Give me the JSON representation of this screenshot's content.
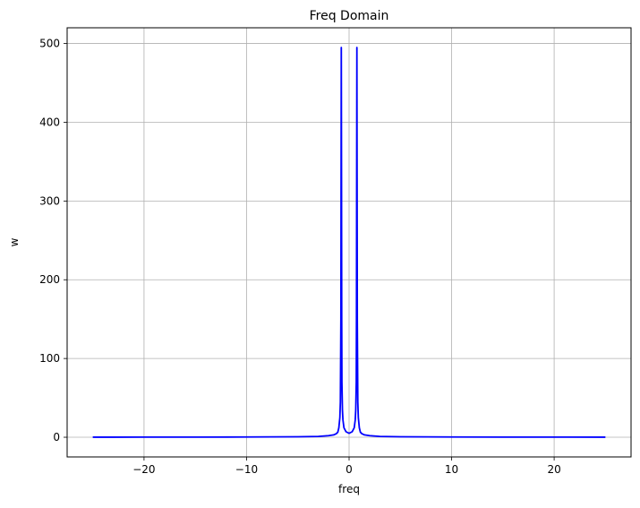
{
  "chart_data": {
    "type": "line",
    "title": "Freq Domain",
    "xlabel": "freq",
    "ylabel": "w",
    "xlim": [
      -27.5,
      27.5
    ],
    "ylim": [
      -25,
      520
    ],
    "xticks": [
      -20,
      -10,
      0,
      10,
      20
    ],
    "yticks": [
      0,
      100,
      200,
      300,
      400,
      500
    ],
    "xtick_labels": [
      "−20",
      "−10",
      "0",
      "10",
      "20"
    ],
    "ytick_labels": [
      "0",
      "100",
      "200",
      "300",
      "400",
      "500"
    ],
    "grid": true,
    "legend": "none",
    "series": [
      {
        "color": "#0000ff",
        "x": [
          -25,
          -20,
          -15,
          -10,
          -5,
          -3,
          -2,
          -1.5,
          -1.25,
          -1.1,
          -1.0,
          -0.9,
          -0.85,
          -0.8,
          -0.78,
          -0.76,
          -0.74,
          -0.72,
          -0.7,
          -0.65,
          -0.6,
          -0.5,
          -0.3,
          0,
          0.3,
          0.5,
          0.6,
          0.65,
          0.7,
          0.72,
          0.74,
          0.76,
          0.78,
          0.8,
          0.85,
          0.9,
          1.0,
          1.1,
          1.25,
          1.5,
          2,
          3,
          5,
          10,
          15,
          20,
          25
        ],
        "y": [
          0.1,
          0.15,
          0.2,
          0.3,
          0.6,
          1.0,
          2.0,
          3.0,
          4.5,
          6.5,
          12,
          25,
          45,
          150,
          330,
          495,
          330,
          150,
          70,
          35,
          22,
          12,
          7,
          5,
          7,
          12,
          22,
          35,
          70,
          150,
          330,
          495,
          330,
          150,
          45,
          25,
          12,
          6.5,
          4.5,
          3.0,
          2.0,
          1.0,
          0.6,
          0.3,
          0.2,
          0.15,
          0.1
        ]
      }
    ]
  }
}
